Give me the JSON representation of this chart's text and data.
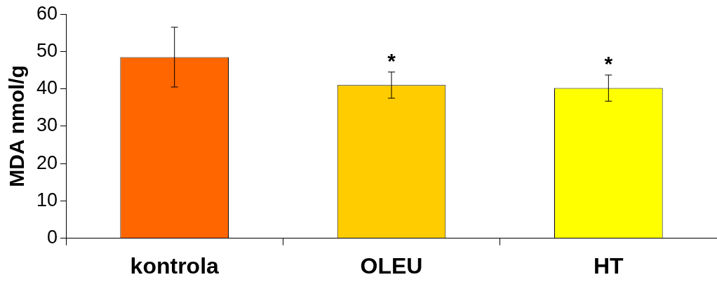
{
  "chart_data": {
    "type": "bar",
    "ylabel": "MDA nmol/g",
    "categories": [
      "kontrola",
      "OLEU",
      "HT"
    ],
    "values": [
      48.5,
      41.0,
      40.2
    ],
    "colors": [
      "#ff6600",
      "#ffcc00",
      "#ffff00"
    ],
    "errors": [
      8,
      3.5,
      3.5
    ],
    "ylim": [
      0,
      60
    ],
    "yticks": [
      0,
      10,
      20,
      30,
      40,
      50,
      60
    ],
    "annotations": [
      {
        "text": "*",
        "x": "OLEU",
        "y": 44.5
      },
      {
        "text": "*",
        "x": "HT",
        "y": 43.7
      }
    ],
    "grid": false,
    "legend": false
  }
}
